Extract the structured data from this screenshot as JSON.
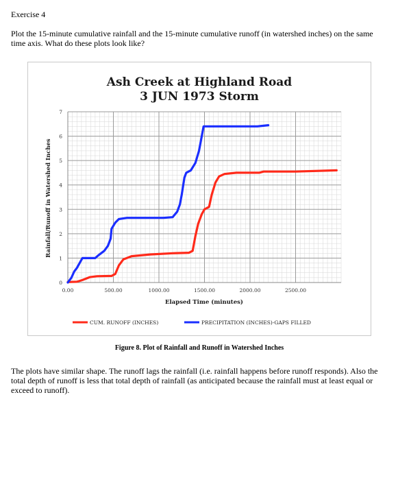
{
  "exercise": {
    "title": "Exercise 4",
    "prompt": "Plot the 15-minute cumulative rainfall and the 15-minute cumulative runoff (in watershed inches) on the same time axis. What do these plots look like?",
    "answer": "The plots have similar shape.  The runoff lags the rainfall (i.e. rainfall happens before runoff responds).  Also the total depth of runoff is less that total depth of rainfall (as anticipated because the rainfall must at least equal or exceed to runoff)."
  },
  "figure_caption": "Figure 8.  Plot of Rainfall and Runoff in Watershed Inches",
  "chart_data": {
    "type": "line",
    "title": "Ash Creek at Highland Road",
    "subtitle": "3 JUN 1973 Storm",
    "xlabel": "Elapsed Time (minutes)",
    "ylabel": "Rainfall/Runoff in Watershed Inches",
    "xlim": [
      0,
      3000
    ],
    "ylim": [
      0,
      7
    ],
    "x_ticks": [
      0,
      500,
      1000,
      1500,
      2000,
      2500
    ],
    "x_tick_labels": [
      "0.00",
      "500.00",
      "1000.00",
      "1500.00",
      "2000.00",
      "2500.00"
    ],
    "y_ticks": [
      0,
      1,
      2,
      3,
      4,
      5,
      6,
      7
    ],
    "y_tick_labels": [
      "0",
      "1",
      "2",
      "3",
      "4",
      "5",
      "6",
      "7"
    ],
    "grid": true,
    "legend_position": "bottom",
    "series": [
      {
        "name": "CUM. RUNOFF (INCHES)",
        "color": "#ff2a1a",
        "points": [
          [
            0,
            0.02
          ],
          [
            100,
            0.03
          ],
          [
            160,
            0.1
          ],
          [
            240,
            0.22
          ],
          [
            320,
            0.26
          ],
          [
            480,
            0.27
          ],
          [
            520,
            0.35
          ],
          [
            560,
            0.7
          ],
          [
            610,
            0.95
          ],
          [
            700,
            1.08
          ],
          [
            900,
            1.15
          ],
          [
            1150,
            1.2
          ],
          [
            1330,
            1.22
          ],
          [
            1370,
            1.3
          ],
          [
            1400,
            1.9
          ],
          [
            1430,
            2.4
          ],
          [
            1470,
            2.8
          ],
          [
            1500,
            3.0
          ],
          [
            1550,
            3.1
          ],
          [
            1580,
            3.6
          ],
          [
            1620,
            4.1
          ],
          [
            1660,
            4.35
          ],
          [
            1720,
            4.45
          ],
          [
            1850,
            4.5
          ],
          [
            2100,
            4.5
          ],
          [
            2150,
            4.55
          ],
          [
            2500,
            4.55
          ],
          [
            2950,
            4.6
          ]
        ]
      },
      {
        "name": "PRECIPITATION (INCHES)-GAPS FILLED",
        "color": "#1a2eff",
        "points": [
          [
            0,
            0
          ],
          [
            40,
            0.2
          ],
          [
            70,
            0.45
          ],
          [
            100,
            0.6
          ],
          [
            130,
            0.8
          ],
          [
            160,
            1.0
          ],
          [
            300,
            1.0
          ],
          [
            330,
            1.1
          ],
          [
            400,
            1.3
          ],
          [
            440,
            1.5
          ],
          [
            470,
            1.8
          ],
          [
            480,
            2.2
          ],
          [
            520,
            2.45
          ],
          [
            560,
            2.6
          ],
          [
            650,
            2.65
          ],
          [
            820,
            2.65
          ],
          [
            1050,
            2.65
          ],
          [
            1150,
            2.68
          ],
          [
            1200,
            2.9
          ],
          [
            1230,
            3.2
          ],
          [
            1250,
            3.6
          ],
          [
            1280,
            4.3
          ],
          [
            1300,
            4.5
          ],
          [
            1350,
            4.6
          ],
          [
            1400,
            4.9
          ],
          [
            1440,
            5.4
          ],
          [
            1460,
            5.8
          ],
          [
            1490,
            6.4
          ],
          [
            1600,
            6.4
          ],
          [
            1900,
            6.4
          ],
          [
            2080,
            6.4
          ],
          [
            2200,
            6.45
          ]
        ]
      }
    ]
  }
}
